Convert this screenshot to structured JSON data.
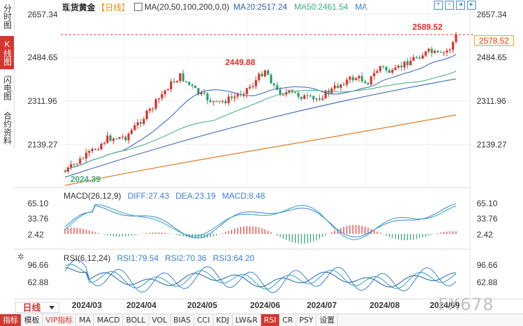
{
  "side_tabs": [
    {
      "label": "分时图",
      "active": false
    },
    {
      "label": "K线图",
      "active": true
    },
    {
      "label": "闪电图",
      "active": false
    },
    {
      "label": "合约资料",
      "active": false
    }
  ],
  "header": {
    "symbol": "现货黄金",
    "period": "【日线】",
    "ma_label": "MA(20,50,100,200,0,0)",
    "ma20": "MA20:2517.24",
    "ma50": "MA50:2461.54",
    "ma": "MA"
  },
  "ctrl_icons": [
    "zoom-in",
    "zoom-out",
    "scroll-left",
    "scroll-right"
  ],
  "price_axis": {
    "left": [
      "2657.34",
      "2484.65",
      "2311.96",
      "2139.27"
    ],
    "right": [
      "2657.34",
      "2484.65",
      "2311.96",
      "2139.27"
    ]
  },
  "price_tag": "2578.52",
  "annotations": {
    "high": "2589.52",
    "mid": "2449.88",
    "low": "2024.39"
  },
  "macd": {
    "title": "MACD(26,12,9)",
    "diff": "DIFF:27.43",
    "dea": "DEA:23.19",
    "macd": "MACD:8.48",
    "axis": [
      "65.10",
      "33.76",
      "2.42"
    ]
  },
  "rsi": {
    "title": "RSI(6,12,24)",
    "rsi1": "RSI1:79.54",
    "rsi2": "RSI2:70.36",
    "rsi3": "RSI3:64.20",
    "axis": [
      "96.66",
      "62.88"
    ]
  },
  "dates": [
    "2024/03",
    "2024/04",
    "2024/05",
    "2024/06",
    "2024/07",
    "2024/08",
    "2024/09"
  ],
  "period_button": "日线",
  "bottom_bar": [
    "指标",
    "模板",
    "VIP指标",
    "MA",
    "MACD",
    "BOLL",
    "VOL",
    "BIAS",
    "CCI",
    "KDJ",
    "LW&R",
    "RSI",
    "CR",
    "PSY",
    "设置"
  ],
  "bottom_active": "RSI",
  "watermark": "FX678",
  "colors": {
    "up": "#e0312a",
    "down": "#2a9d6e",
    "ma20": "#2d5fb5",
    "ma50": "#3aaa7a",
    "ma200": "#e07a22",
    "accent": "#d1372f"
  }
}
